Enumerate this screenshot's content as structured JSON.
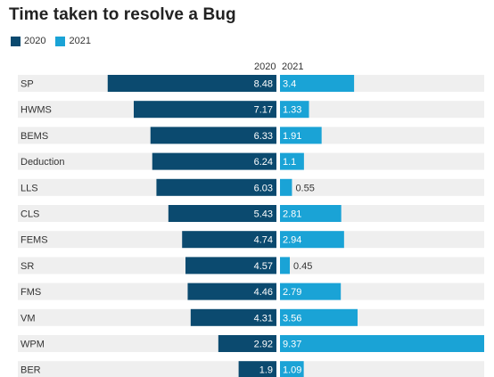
{
  "chart_data": {
    "type": "bar",
    "title": "Time taken to resolve a Bug",
    "column_headers": [
      "2020",
      "2021"
    ],
    "categories": [
      "SP",
      "HWMS",
      "BEMS",
      "Deduction",
      "LLS",
      "CLS",
      "FEMS",
      "SR",
      "FMS",
      "VM",
      "WPM",
      "BER"
    ],
    "series": [
      {
        "name": "2020",
        "color": "#0b4a6f",
        "values": [
          8.48,
          7.17,
          6.33,
          6.24,
          6.03,
          5.43,
          4.74,
          4.57,
          4.46,
          4.31,
          2.92,
          1.9
        ]
      },
      {
        "name": "2021",
        "color": "#1aa3d6",
        "values": [
          3.4,
          1.33,
          1.91,
          1.1,
          0.55,
          2.81,
          2.94,
          0.45,
          2.79,
          3.56,
          9.37,
          1.09
        ]
      }
    ],
    "xlim_2020": [
      0,
      9.5
    ],
    "xlim_2021": [
      0,
      9.37
    ],
    "background_track_color": "#efefef",
    "legend_position": "top-left"
  }
}
